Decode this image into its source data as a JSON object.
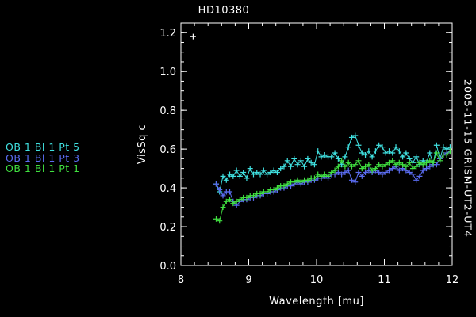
{
  "chart_data": {
    "type": "line",
    "title": "HD10380",
    "xlabel": "Wavelength [mu]",
    "ylabel": "VisSq c",
    "side_label": "2005-11-15 GRISM-UT2-UT4",
    "xlim": [
      8,
      12
    ],
    "ylim": [
      0,
      1.25
    ],
    "xticks": [
      "8",
      "9",
      "10",
      "11",
      "12"
    ],
    "yticks": [
      "0.0",
      "0.2",
      "0.4",
      "0.6",
      "0.8",
      "1.0",
      "1.2"
    ],
    "grid": false,
    "legend_placement": "left-outside",
    "extra_points": [
      {
        "x": 8.18,
        "y": 1.18,
        "color": "#ffffff"
      }
    ],
    "series": [
      {
        "name": "OB 1 Bl 1 Pt 5",
        "color": "#40e0e0",
        "x": [
          8.52,
          8.57,
          8.62,
          8.67,
          8.72,
          8.77,
          8.82,
          8.87,
          8.92,
          8.97,
          9.02,
          9.07,
          9.12,
          9.17,
          9.22,
          9.27,
          9.32,
          9.37,
          9.42,
          9.47,
          9.52,
          9.57,
          9.62,
          9.67,
          9.72,
          9.77,
          9.82,
          9.87,
          9.92,
          9.97,
          10.02,
          10.07,
          10.12,
          10.17,
          10.22,
          10.27,
          10.32,
          10.37,
          10.42,
          10.47,
          10.52,
          10.57,
          10.62,
          10.67,
          10.72,
          10.77,
          10.82,
          10.87,
          10.92,
          10.97,
          11.02,
          11.07,
          11.12,
          11.17,
          11.22,
          11.27,
          11.32,
          11.37,
          11.42,
          11.47,
          11.52,
          11.57,
          11.62,
          11.67,
          11.72,
          11.77,
          11.82,
          11.87,
          11.92,
          11.97
        ],
        "values": [
          0.42,
          0.38,
          0.46,
          0.44,
          0.47,
          0.46,
          0.49,
          0.46,
          0.48,
          0.45,
          0.5,
          0.47,
          0.48,
          0.47,
          0.49,
          0.47,
          0.48,
          0.49,
          0.48,
          0.5,
          0.51,
          0.54,
          0.51,
          0.55,
          0.52,
          0.54,
          0.51,
          0.55,
          0.53,
          0.52,
          0.59,
          0.56,
          0.57,
          0.56,
          0.56,
          0.58,
          0.55,
          0.52,
          0.56,
          0.61,
          0.66,
          0.67,
          0.62,
          0.58,
          0.57,
          0.59,
          0.56,
          0.59,
          0.62,
          0.61,
          0.58,
          0.59,
          0.58,
          0.61,
          0.59,
          0.56,
          0.58,
          0.55,
          0.53,
          0.56,
          0.52,
          0.54,
          0.53,
          0.58,
          0.52,
          0.62,
          0.55,
          0.61,
          0.6,
          0.61
        ]
      },
      {
        "name": "OB 1 Bl 1 Pt 3",
        "color": "#5a6cf0",
        "x": [
          8.52,
          8.57,
          8.62,
          8.67,
          8.72,
          8.77,
          8.82,
          8.87,
          8.92,
          8.97,
          9.02,
          9.07,
          9.12,
          9.17,
          9.22,
          9.27,
          9.32,
          9.37,
          9.42,
          9.47,
          9.52,
          9.57,
          9.62,
          9.67,
          9.72,
          9.77,
          9.82,
          9.87,
          9.92,
          9.97,
          10.02,
          10.07,
          10.12,
          10.17,
          10.22,
          10.27,
          10.32,
          10.37,
          10.42,
          10.47,
          10.52,
          10.57,
          10.62,
          10.67,
          10.72,
          10.77,
          10.82,
          10.87,
          10.92,
          10.97,
          11.02,
          11.07,
          11.12,
          11.17,
          11.22,
          11.27,
          11.32,
          11.37,
          11.42,
          11.47,
          11.52,
          11.57,
          11.62,
          11.67,
          11.72,
          11.77,
          11.82,
          11.87,
          11.92,
          11.97
        ],
        "values": [
          0.42,
          0.39,
          0.36,
          0.38,
          0.38,
          0.33,
          0.31,
          0.33,
          0.34,
          0.34,
          0.35,
          0.35,
          0.36,
          0.36,
          0.37,
          0.37,
          0.38,
          0.38,
          0.39,
          0.4,
          0.4,
          0.41,
          0.41,
          0.42,
          0.43,
          0.42,
          0.43,
          0.43,
          0.44,
          0.44,
          0.45,
          0.45,
          0.46,
          0.45,
          0.47,
          0.47,
          0.48,
          0.47,
          0.48,
          0.49,
          0.44,
          0.43,
          0.48,
          0.46,
          0.48,
          0.49,
          0.48,
          0.49,
          0.48,
          0.47,
          0.48,
          0.49,
          0.5,
          0.51,
          0.49,
          0.5,
          0.49,
          0.48,
          0.47,
          0.44,
          0.46,
          0.49,
          0.5,
          0.51,
          0.52,
          0.52,
          0.55,
          0.57,
          0.58,
          0.59
        ]
      },
      {
        "name": "OB 1 Bl 1 Pt 1",
        "color": "#40e040",
        "x": [
          8.52,
          8.57,
          8.62,
          8.67,
          8.72,
          8.77,
          8.82,
          8.87,
          8.92,
          8.97,
          9.02,
          9.07,
          9.12,
          9.17,
          9.22,
          9.27,
          9.32,
          9.37,
          9.42,
          9.47,
          9.52,
          9.57,
          9.62,
          9.67,
          9.72,
          9.77,
          9.82,
          9.87,
          9.92,
          9.97,
          10.02,
          10.07,
          10.12,
          10.17,
          10.22,
          10.27,
          10.32,
          10.37,
          10.42,
          10.47,
          10.52,
          10.57,
          10.62,
          10.67,
          10.72,
          10.77,
          10.82,
          10.87,
          10.92,
          10.97,
          11.02,
          11.07,
          11.12,
          11.17,
          11.22,
          11.27,
          11.32,
          11.37,
          11.42,
          11.47,
          11.52,
          11.57,
          11.62,
          11.67,
          11.72,
          11.77,
          11.82,
          11.87,
          11.92,
          11.97
        ],
        "values": [
          0.24,
          0.23,
          0.3,
          0.33,
          0.34,
          0.32,
          0.33,
          0.34,
          0.35,
          0.35,
          0.36,
          0.36,
          0.37,
          0.37,
          0.38,
          0.38,
          0.39,
          0.39,
          0.4,
          0.41,
          0.41,
          0.42,
          0.43,
          0.43,
          0.44,
          0.43,
          0.44,
          0.44,
          0.45,
          0.45,
          0.47,
          0.46,
          0.47,
          0.46,
          0.48,
          0.49,
          0.51,
          0.54,
          0.51,
          0.53,
          0.51,
          0.52,
          0.54,
          0.5,
          0.51,
          0.52,
          0.49,
          0.5,
          0.52,
          0.51,
          0.52,
          0.53,
          0.54,
          0.52,
          0.53,
          0.52,
          0.51,
          0.53,
          0.5,
          0.51,
          0.53,
          0.52,
          0.53,
          0.54,
          0.53,
          0.58,
          0.54,
          0.57,
          0.57,
          0.59
        ]
      }
    ]
  }
}
